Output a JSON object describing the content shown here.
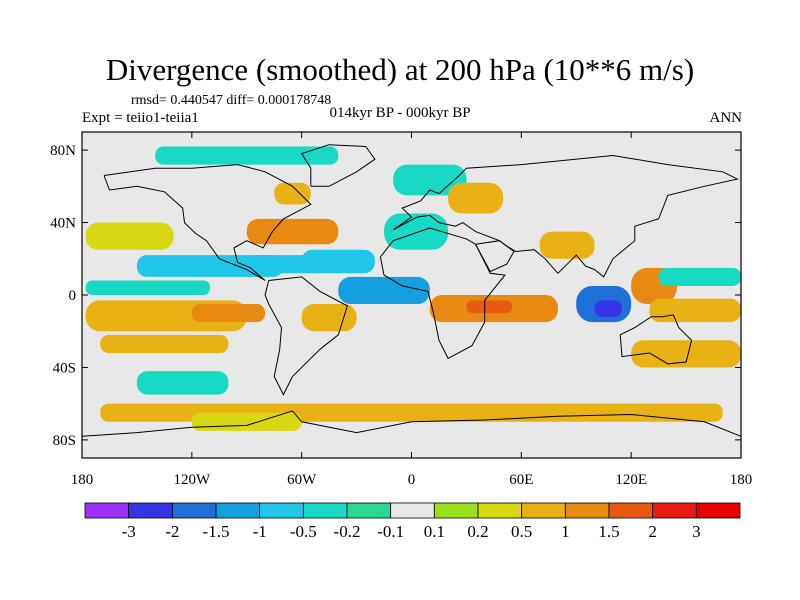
{
  "header": {
    "title": "Divergence (smoothed) at 200 hPa (10**6 m/s)",
    "stats": "rmsd= 0.440547 diff= 0.000178748",
    "experiment": "Expt = teiio1-teiia1",
    "period": "014kyr BP - 000kyr BP",
    "season": "ANN"
  },
  "chart_data": {
    "type": "heatmap",
    "title": "Divergence (smoothed) at 200 hPa (10**6 m/s)",
    "xlim": [
      -180,
      180
    ],
    "ylim": [
      -90,
      90
    ],
    "x_ticks": [
      {
        "value": -180,
        "label": "180"
      },
      {
        "value": -120,
        "label": "120W"
      },
      {
        "value": -60,
        "label": "60W"
      },
      {
        "value": 0,
        "label": "0"
      },
      {
        "value": 60,
        "label": "60E"
      },
      {
        "value": 120,
        "label": "120E"
      },
      {
        "value": 180,
        "label": "180"
      }
    ],
    "y_ticks": [
      {
        "value": 80,
        "label": "80N"
      },
      {
        "value": 40,
        "label": "40N"
      },
      {
        "value": 0,
        "label": "0"
      },
      {
        "value": -40,
        "label": "40S"
      },
      {
        "value": -80,
        "label": "80S"
      }
    ],
    "colorbar": {
      "labels": [
        "-3",
        "-2",
        "-1.5",
        "-1",
        "-0.5",
        "-0.2",
        "-0.1",
        "0.1",
        "0.2",
        "0.5",
        "1",
        "1.5",
        "2",
        "3"
      ],
      "colors": [
        "#9b30ff",
        "#3535e6",
        "#1f6fd9",
        "#14a0e0",
        "#20c7e8",
        "#18d9c4",
        "#28d98f",
        "#e8e8e8",
        "#9be01a",
        "#d7d712",
        "#e8b215",
        "#e88a12",
        "#e85a10",
        "#e81c10",
        "#e80000"
      ]
    },
    "regions": [
      {
        "lon": [
          -180,
          180
        ],
        "lat": [
          -90,
          90
        ],
        "value": 0.0
      },
      {
        "lon": [
          -178,
          -130
        ],
        "lat": [
          25,
          40
        ],
        "value": 0.25
      },
      {
        "lon": [
          -150,
          -70
        ],
        "lat": [
          10,
          22
        ],
        "value": -0.6
      },
      {
        "lon": [
          -90,
          -50
        ],
        "lat": [
          12,
          22
        ],
        "value": -1.0
      },
      {
        "lon": [
          -178,
          -110
        ],
        "lat": [
          0,
          8
        ],
        "value": -0.3
      },
      {
        "lon": [
          -178,
          -90
        ],
        "lat": [
          -20,
          -3
        ],
        "value": 0.7
      },
      {
        "lon": [
          -120,
          -80
        ],
        "lat": [
          -15,
          -5
        ],
        "value": 1.2
      },
      {
        "lon": [
          -170,
          -100
        ],
        "lat": [
          -32,
          -22
        ],
        "value": 0.5
      },
      {
        "lon": [
          -150,
          -100
        ],
        "lat": [
          -55,
          -42
        ],
        "value": -0.4
      },
      {
        "lon": [
          -140,
          -40
        ],
        "lat": [
          72,
          82
        ],
        "value": -0.3
      },
      {
        "lon": [
          -75,
          -55
        ],
        "lat": [
          50,
          62
        ],
        "value": 0.7
      },
      {
        "lon": [
          -90,
          -40
        ],
        "lat": [
          28,
          42
        ],
        "value": 1.0
      },
      {
        "lon": [
          -60,
          -20
        ],
        "lat": [
          12,
          25
        ],
        "value": -0.8
      },
      {
        "lon": [
          -40,
          10
        ],
        "lat": [
          -5,
          10
        ],
        "value": -1.4
      },
      {
        "lon": [
          -60,
          -30
        ],
        "lat": [
          -20,
          -5
        ],
        "value": 0.7
      },
      {
        "lon": [
          -15,
          20
        ],
        "lat": [
          25,
          45
        ],
        "value": -0.4
      },
      {
        "lon": [
          -10,
          30
        ],
        "lat": [
          55,
          72
        ],
        "value": -0.5
      },
      {
        "lon": [
          20,
          50
        ],
        "lat": [
          45,
          62
        ],
        "value": 0.6
      },
      {
        "lon": [
          10,
          80
        ],
        "lat": [
          -15,
          0
        ],
        "value": 1.3
      },
      {
        "lon": [
          30,
          55
        ],
        "lat": [
          -10,
          -3
        ],
        "value": 1.8
      },
      {
        "lon": [
          70,
          100
        ],
        "lat": [
          20,
          35
        ],
        "value": 0.7
      },
      {
        "lon": [
          90,
          120
        ],
        "lat": [
          -15,
          5
        ],
        "value": -1.6
      },
      {
        "lon": [
          100,
          115
        ],
        "lat": [
          -12,
          -3
        ],
        "value": -2.5
      },
      {
        "lon": [
          120,
          145
        ],
        "lat": [
          -5,
          15
        ],
        "value": 1.3
      },
      {
        "lon": [
          135,
          180
        ],
        "lat": [
          5,
          15
        ],
        "value": -0.5
      },
      {
        "lon": [
          130,
          180
        ],
        "lat": [
          -15,
          -2
        ],
        "value": 0.6
      },
      {
        "lon": [
          120,
          180
        ],
        "lat": [
          -40,
          -25
        ],
        "value": 0.7
      },
      {
        "lon": [
          -170,
          170
        ],
        "lat": [
          -70,
          -60
        ],
        "value": 0.5
      },
      {
        "lon": [
          -120,
          -60
        ],
        "lat": [
          -75,
          -65
        ],
        "value": 0.4
      }
    ]
  }
}
